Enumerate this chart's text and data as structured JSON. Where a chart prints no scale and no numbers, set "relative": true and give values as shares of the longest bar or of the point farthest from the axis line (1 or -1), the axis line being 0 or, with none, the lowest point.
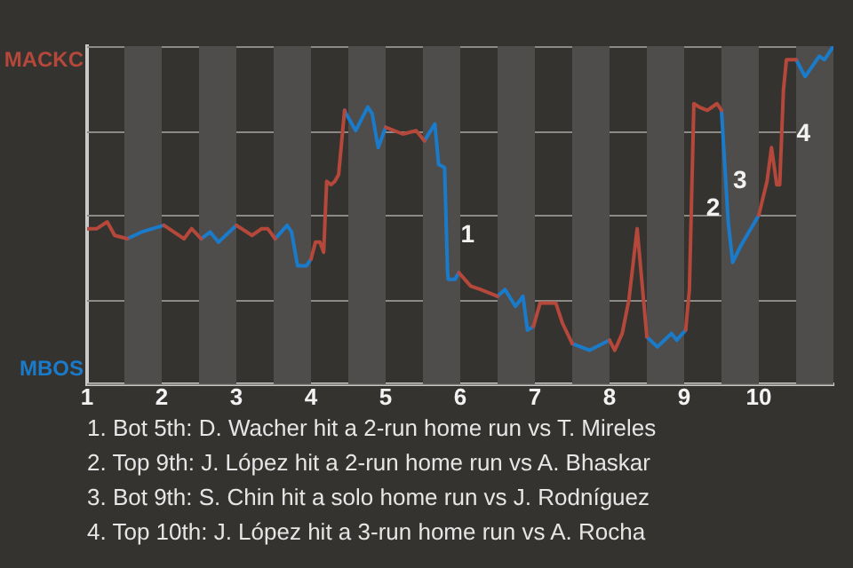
{
  "chart_data": {
    "type": "line",
    "relative": true,
    "grid": "y",
    "legend": "left",
    "marker": "none",
    "line_style": "solid",
    "xlim": [
      1,
      11
    ],
    "xticks": [
      1,
      2,
      3,
      4,
      5,
      6,
      7,
      8,
      9,
      10
    ],
    "bands": [
      {
        "axis": "x",
        "from": 1.5,
        "to": 2,
        "color": "#4e4d4b"
      },
      {
        "axis": "x",
        "from": 2.5,
        "to": 3,
        "color": "#4e4d4b"
      },
      {
        "axis": "x",
        "from": 3.5,
        "to": 4,
        "color": "#4e4d4b"
      },
      {
        "axis": "x",
        "from": 4.5,
        "to": 5,
        "color": "#4e4d4b"
      },
      {
        "axis": "x",
        "from": 5.5,
        "to": 6,
        "color": "#4e4d4b"
      },
      {
        "axis": "x",
        "from": 6.5,
        "to": 7,
        "color": "#4e4d4b"
      },
      {
        "axis": "x",
        "from": 7.5,
        "to": 8,
        "color": "#4e4d4b"
      },
      {
        "axis": "x",
        "from": 8.5,
        "to": 9,
        "color": "#4e4d4b"
      },
      {
        "axis": "x",
        "from": 9.5,
        "to": 10,
        "color": "#4e4d4b"
      },
      {
        "axis": "x",
        "from": 10.5,
        "to": 11,
        "color": "#4e4d4b"
      }
    ],
    "x": [
      1.0,
      1.13,
      1.27,
      1.37,
      1.54,
      1.73,
      2.03,
      2.3,
      2.4,
      2.53,
      2.65,
      2.76,
      3.0,
      3.21,
      3.34,
      3.42,
      3.52,
      3.68,
      3.74,
      3.82,
      3.94,
      4.0,
      4.06,
      4.12,
      4.17,
      4.21,
      4.27,
      4.32,
      4.37,
      4.45,
      4.47,
      4.6,
      4.76,
      4.82,
      4.9,
      5.0,
      5.23,
      5.41,
      5.52,
      5.66,
      5.71,
      5.79,
      5.83,
      5.84,
      5.93,
      5.98,
      6.14,
      6.27,
      6.5,
      6.6,
      6.74,
      6.84,
      6.9,
      6.98,
      7.07,
      7.28,
      7.37,
      7.5,
      7.73,
      8.0,
      8.07,
      8.17,
      8.26,
      8.37,
      8.5,
      8.64,
      8.83,
      8.9,
      9.02,
      9.07,
      9.13,
      9.2,
      9.31,
      9.44,
      9.5,
      9.59,
      9.65,
      9.76,
      10.0,
      10.11,
      10.17,
      10.24,
      10.28,
      10.33,
      10.37,
      10.5,
      10.62,
      10.81,
      10.88,
      11.0
    ],
    "series": [
      {
        "name": "MACKC",
        "color": "#b5483a",
        "values": [
          0.46,
          0.46,
          0.48,
          0.44,
          0.43,
          null,
          0.47,
          0.43,
          0.46,
          0.43,
          null,
          null,
          0.47,
          0.44,
          0.46,
          0.46,
          0.43,
          null,
          null,
          null,
          null,
          0.37,
          0.42,
          0.42,
          0.39,
          0.6,
          0.59,
          0.6,
          0.62,
          0.81,
          null,
          null,
          null,
          null,
          null,
          0.76,
          0.74,
          0.75,
          0.72,
          null,
          null,
          null,
          null,
          null,
          null,
          0.33,
          0.29,
          0.28,
          0.26,
          null,
          null,
          null,
          null,
          0.17,
          0.24,
          0.24,
          0.18,
          0.12,
          null,
          0.13,
          0.1,
          0.15,
          0.25,
          0.46,
          0.14,
          null,
          null,
          null,
          0.16,
          0.28,
          0.83,
          0.82,
          0.81,
          0.83,
          0.81,
          null,
          null,
          null,
          0.5,
          0.6,
          0.7,
          0.59,
          0.59,
          0.87,
          0.96,
          0.96,
          null,
          null,
          null,
          null
        ]
      },
      {
        "name": "MBOS",
        "color": "#1b7bcb",
        "values": [
          null,
          null,
          null,
          null,
          0.43,
          0.45,
          0.47,
          null,
          null,
          0.43,
          0.45,
          0.42,
          0.47,
          null,
          null,
          null,
          0.43,
          0.47,
          0.45,
          0.35,
          0.35,
          0.37,
          null,
          null,
          null,
          null,
          null,
          null,
          null,
          0.81,
          0.8,
          0.75,
          0.82,
          0.8,
          0.7,
          0.76,
          null,
          null,
          0.72,
          0.77,
          0.65,
          0.64,
          0.33,
          0.31,
          0.31,
          0.33,
          null,
          null,
          0.26,
          0.28,
          0.23,
          0.26,
          0.16,
          0.17,
          null,
          null,
          null,
          0.12,
          0.1,
          0.13,
          null,
          null,
          null,
          null,
          0.14,
          0.11,
          0.15,
          0.13,
          0.16,
          null,
          null,
          null,
          null,
          null,
          0.81,
          0.48,
          0.36,
          0.41,
          0.5,
          null,
          null,
          null,
          null,
          null,
          null,
          0.96,
          0.91,
          0.97,
          0.96,
          1
        ]
      }
    ],
    "annotations": [
      {
        "text": "1",
        "x": 5.91,
        "y": 0.44
      },
      {
        "text": "2",
        "x": 9.2,
        "y": 0.52
      },
      {
        "text": "3",
        "x": 9.56,
        "y": 0.6
      },
      {
        "text": "4",
        "x": 10.41,
        "y": 0.74
      },
      "1. Bot 5th: D. Wacher hit a 2-run home run vs T. Mireles",
      "2. Top 9th: J. López hit a 2-run home run vs A. Bhaskar",
      "3. Bot 9th: S. Chin hit a solo home run vs J. Rodníguez",
      "4. Top 10th: J. López hit a 3-run home run vs A. Rocha"
    ]
  }
}
